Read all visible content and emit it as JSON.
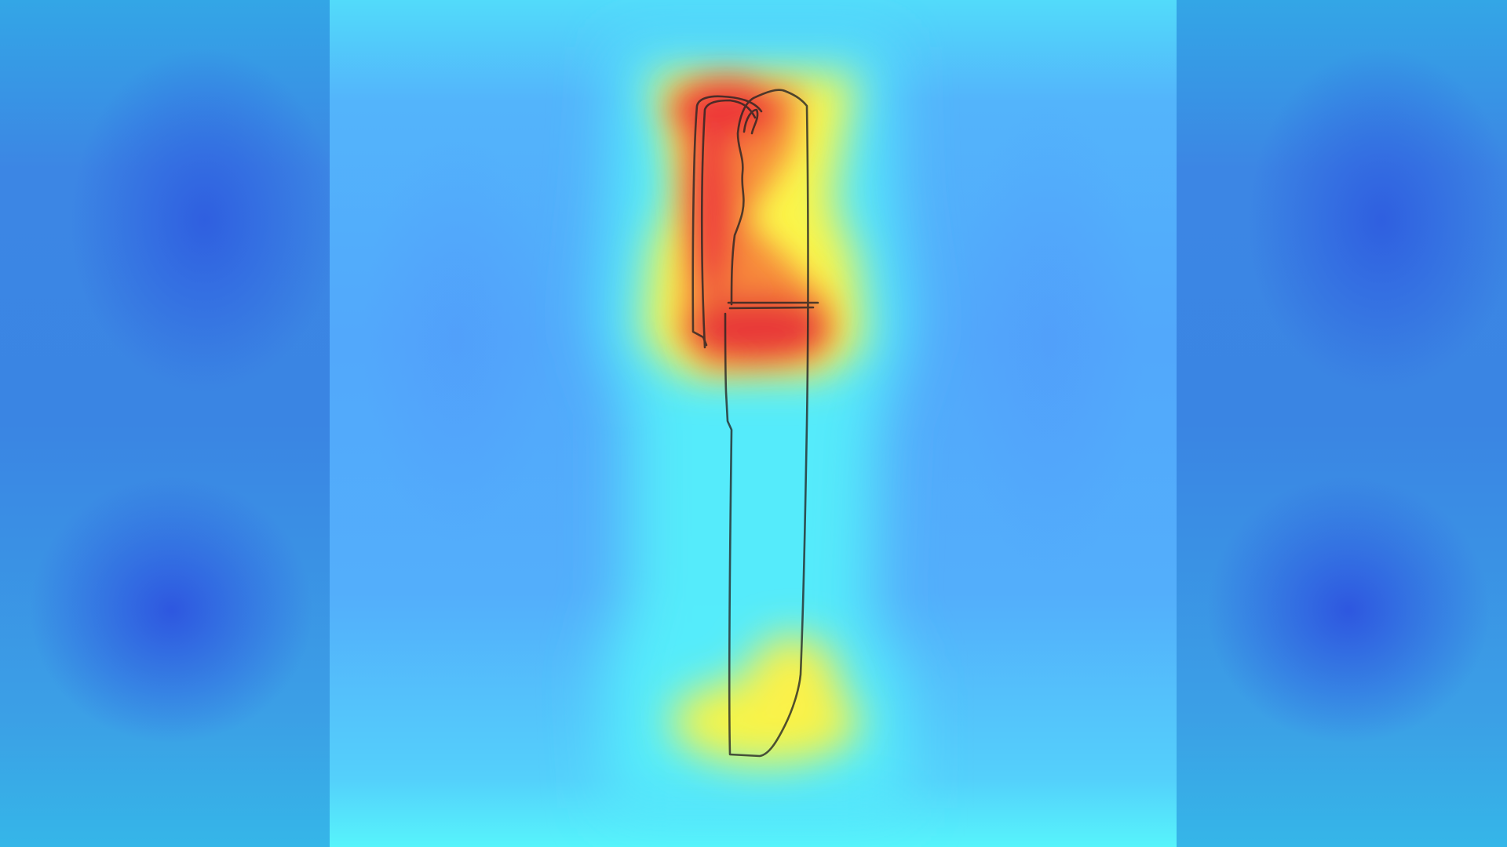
{
  "image": {
    "subject": "knife",
    "overlay": "attention-heatmap"
  },
  "colors": {
    "background_blue": "#3a85e3",
    "panel_blue": "#52a8fb",
    "cyan": "#54f3fb",
    "yellow": "#fbf64a",
    "red": "#ee3a3a",
    "outline": "#222222"
  }
}
